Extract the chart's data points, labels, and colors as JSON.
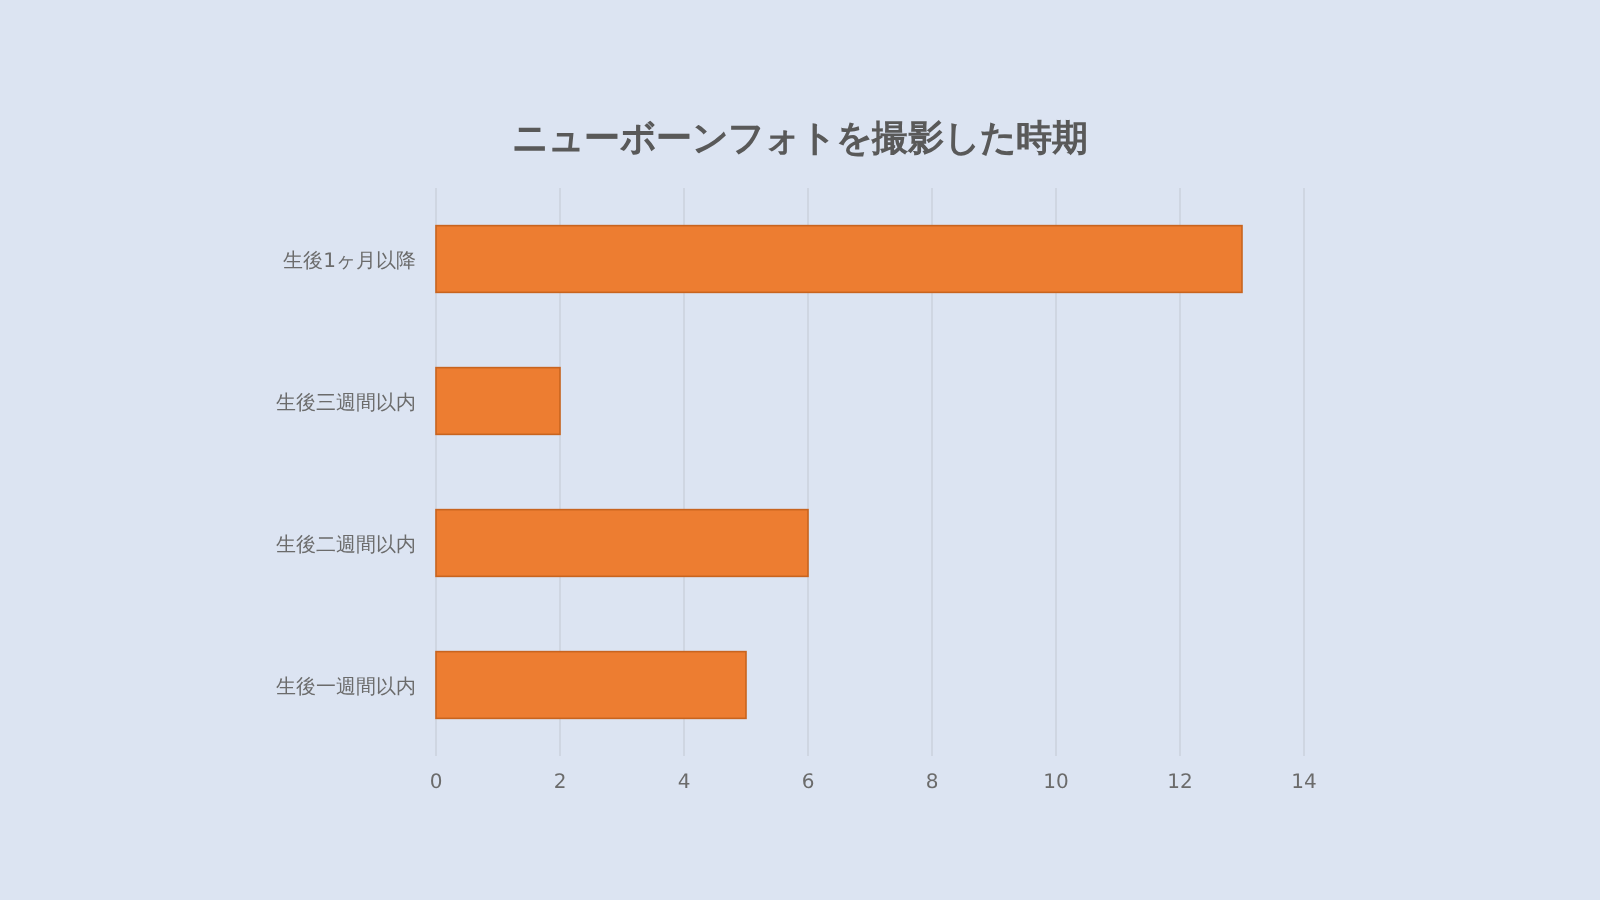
{
  "chart_data": {
    "type": "bar",
    "orientation": "horizontal",
    "title": "ニューボーンフォトを撮影した時期",
    "categories": [
      "生後1ヶ月以降",
      "生後三週間以内",
      "生後二週間以内",
      "生後一週間以内"
    ],
    "values": [
      13,
      2,
      6,
      5
    ],
    "color": "#ed7d31",
    "xlim": [
      0,
      14
    ],
    "xticks": [
      0,
      2,
      4,
      6,
      8,
      10,
      12,
      14
    ],
    "grid": "x"
  }
}
